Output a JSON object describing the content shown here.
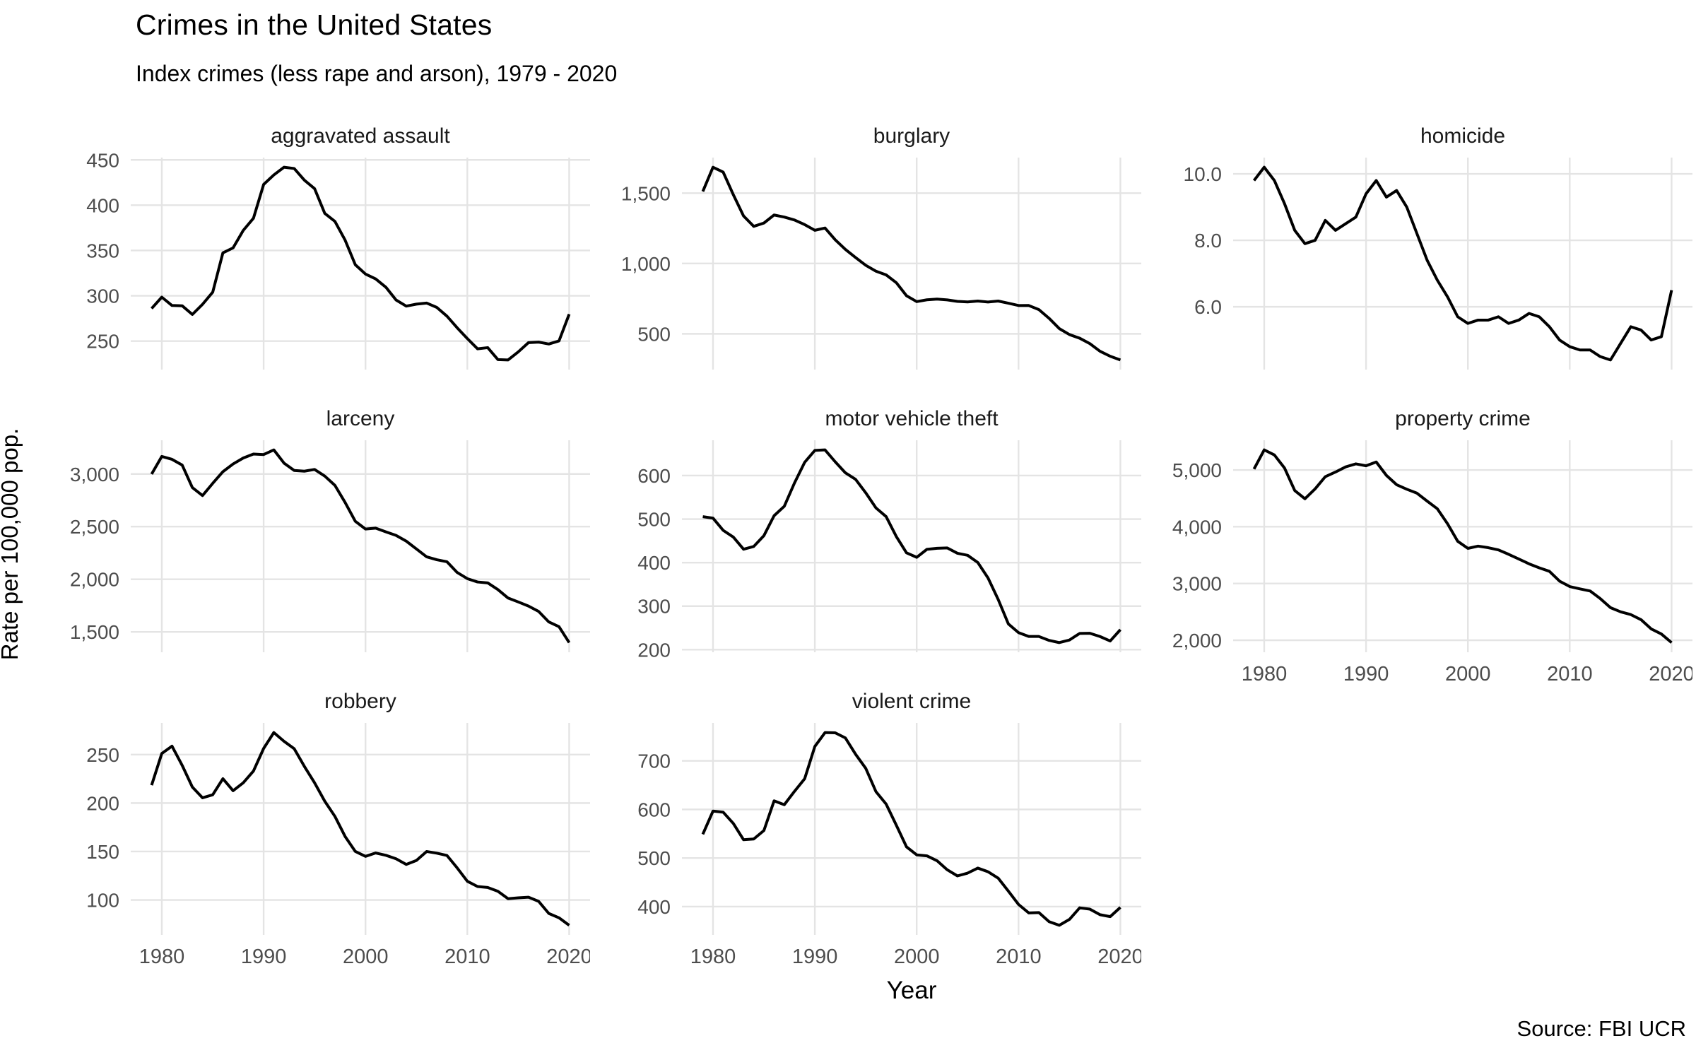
{
  "title": "Crimes in the United States",
  "subtitle": "Index crimes (less rape and arson), 1979 - 2020",
  "y_axis_title": "Rate per 100,000 pop.",
  "x_axis_title": "Year",
  "source": "Source: FBI UCR",
  "colors": {
    "line": "#000000",
    "grid": "#e4e4e4",
    "axis_text": "#4d4d4d",
    "strip_text": "#1a1a1a",
    "background": "#ffffff"
  },
  "chart_data": {
    "type": "line",
    "layout": "facet_wrap 3x3, last cell empty",
    "grid": "major-only",
    "legend": "none",
    "x": {
      "start": 1979,
      "end": 2020,
      "ticks": [
        1980,
        1990,
        2000,
        2010,
        2020
      ],
      "tick_labels": [
        "1980",
        "1990",
        "2000",
        "2010",
        "2020"
      ]
    },
    "panels": [
      {
        "title": "aggravated assault",
        "row": 0,
        "col": 0,
        "show_x_axis": false,
        "y_ticks": [
          250,
          300,
          350,
          400,
          450
        ],
        "y_tick_labels": [
          "250",
          "300",
          "350",
          "400",
          "450"
        ],
        "values": [
          286.0,
          298.5,
          289.3,
          289.0,
          279.4,
          290.6,
          304.0,
          347.4,
          352.9,
          372.2,
          385.6,
          422.9,
          433.4,
          441.9,
          440.5,
          427.6,
          418.3,
          391.0,
          382.1,
          361.4,
          334.3,
          324.0,
          318.6,
          309.5,
          295.4,
          288.6,
          290.8,
          292.0,
          287.2,
          277.5,
          264.7,
          252.8,
          241.5,
          242.8,
          229.6,
          229.2,
          238.1,
          248.3,
          248.9,
          246.8,
          250.2,
          279.7
        ]
      },
      {
        "title": "burglary",
        "row": 0,
        "col": 1,
        "show_x_axis": false,
        "y_ticks": [
          500,
          1000,
          1500
        ],
        "y_tick_labels": [
          "500",
          "1,000",
          "1,500"
        ],
        "values": [
          1511.9,
          1684.1,
          1649.5,
          1488.0,
          1337.7,
          1263.7,
          1287.3,
          1344.6,
          1329.6,
          1309.2,
          1276.3,
          1235.9,
          1252.1,
          1168.4,
          1099.7,
          1042.1,
          987.0,
          945.0,
          918.8,
          863.2,
          770.4,
          728.8,
          741.8,
          747.0,
          741.0,
          730.3,
          726.9,
          733.1,
          726.1,
          733.0,
          717.7,
          701.0,
          701.3,
          672.2,
          610.0,
          537.2,
          494.7,
          468.9,
          430.4,
          376.0,
          340.5,
          314.2
        ]
      },
      {
        "title": "homicide",
        "row": 0,
        "col": 2,
        "show_x_axis": false,
        "y_ticks": [
          6,
          8,
          10
        ],
        "y_tick_labels": [
          "6.0",
          "8.0",
          "10.0"
        ],
        "values": [
          9.8,
          10.2,
          9.8,
          9.1,
          8.3,
          7.9,
          8.0,
          8.6,
          8.3,
          8.5,
          8.7,
          9.4,
          9.8,
          9.3,
          9.5,
          9.0,
          8.2,
          7.4,
          6.8,
          6.3,
          5.7,
          5.5,
          5.6,
          5.6,
          5.7,
          5.5,
          5.6,
          5.8,
          5.7,
          5.4,
          5.0,
          4.8,
          4.7,
          4.7,
          4.5,
          4.4,
          4.9,
          5.4,
          5.3,
          5.0,
          5.1,
          6.5
        ]
      },
      {
        "title": "larceny",
        "row": 1,
        "col": 0,
        "show_x_axis": false,
        "y_ticks": [
          1500,
          2000,
          2500,
          3000
        ],
        "y_tick_labels": [
          "1,500",
          "2,000",
          "2,500",
          "3,000"
        ],
        "values": [
          2999.1,
          3167.0,
          3139.7,
          3084.9,
          2871.3,
          2795.2,
          2911.2,
          3022.1,
          3095.4,
          3151.7,
          3189.6,
          3185.1,
          3229.1,
          3103.6,
          3033.9,
          3026.9,
          3043.2,
          2980.3,
          2891.8,
          2729.5,
          2550.7,
          2477.3,
          2485.7,
          2450.7,
          2416.5,
          2362.3,
          2287.8,
          2213.2,
          2185.4,
          2166.1,
          2064.5,
          2005.8,
          1974.1,
          1965.4,
          1901.9,
          1821.5,
          1784.4,
          1745.4,
          1694.4,
          1594.6,
          1549.5,
          1398.0
        ]
      },
      {
        "title": "motor vehicle theft",
        "row": 1,
        "col": 1,
        "show_x_axis": false,
        "y_ticks": [
          200,
          300,
          400,
          500,
          600
        ],
        "y_tick_labels": [
          "200",
          "300",
          "400",
          "500",
          "600"
        ],
        "values": [
          505.6,
          502.2,
          474.1,
          458.6,
          430.8,
          437.1,
          462.0,
          507.8,
          529.4,
          582.9,
          630.4,
          657.8,
          659.0,
          631.6,
          606.3,
          591.3,
          560.3,
          525.7,
          505.7,
          459.9,
          422.5,
          412.2,
          430.5,
          432.9,
          433.7,
          421.5,
          416.8,
          400.2,
          364.9,
          315.4,
          259.2,
          239.1,
          230.4,
          230.3,
          221.3,
          216.2,
          222.2,
          237.3,
          237.7,
          230.2,
          219.9,
          246.0
        ]
      },
      {
        "title": "property crime",
        "row": 1,
        "col": 2,
        "show_x_axis": true,
        "y_ticks": [
          2000,
          3000,
          4000,
          5000
        ],
        "y_tick_labels": [
          "2,000",
          "3,000",
          "4,000",
          "5,000"
        ],
        "values": [
          5016.6,
          5353.3,
          5263.9,
          5032.5,
          4637.4,
          4492.1,
          4666.4,
          4881.8,
          4963.0,
          5054.0,
          5107.1,
          5073.1,
          5140.2,
          4903.7,
          4740.0,
          4660.2,
          4590.5,
          4451.0,
          4316.3,
          4052.5,
          3743.6,
          3618.3,
          3658.1,
          3630.6,
          3591.2,
          3514.1,
          3431.5,
          3346.6,
          3276.4,
          3214.6,
          3041.3,
          2945.9,
          2905.4,
          2868.0,
          2733.6,
          2574.1,
          2500.5,
          2451.6,
          2362.2,
          2199.5,
          2109.9,
          1958.2
        ]
      },
      {
        "title": "robbery",
        "row": 2,
        "col": 0,
        "show_x_axis": true,
        "y_ticks": [
          100,
          150,
          200,
          250
        ],
        "y_tick_labels": [
          "100",
          "150",
          "200",
          "250"
        ],
        "values": [
          218.4,
          251.1,
          258.7,
          238.9,
          216.5,
          205.4,
          208.5,
          225.1,
          212.7,
          220.9,
          233.0,
          256.3,
          272.7,
          263.7,
          256.0,
          237.8,
          220.9,
          201.9,
          186.2,
          165.5,
          150.1,
          145.0,
          148.5,
          146.1,
          142.5,
          136.7,
          140.8,
          150.0,
          148.3,
          145.9,
          133.1,
          119.3,
          113.9,
          112.9,
          109.0,
          101.3,
          102.2,
          102.9,
          98.6,
          86.1,
          81.6,
          73.9
        ]
      },
      {
        "title": "violent crime",
        "row": 2,
        "col": 1,
        "show_x_axis": true,
        "y_ticks": [
          400,
          500,
          600,
          700
        ],
        "y_tick_labels": [
          "400",
          "500",
          "600",
          "700"
        ],
        "values": [
          548.9,
          596.6,
          594.3,
          571.1,
          537.7,
          539.2,
          556.6,
          617.7,
          609.7,
          637.2,
          663.1,
          729.6,
          758.2,
          757.7,
          747.1,
          713.6,
          684.5,
          636.6,
          611.0,
          567.6,
          523.0,
          506.5,
          504.5,
          494.4,
          475.8,
          463.2,
          469.0,
          479.3,
          471.8,
          458.6,
          431.9,
          404.5,
          387.1,
          387.8,
          369.1,
          361.6,
          373.7,
          397.5,
          394.9,
          383.4,
          379.4,
          398.5
        ]
      }
    ]
  }
}
